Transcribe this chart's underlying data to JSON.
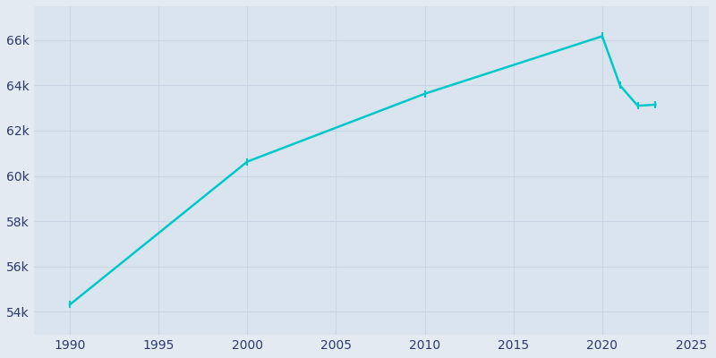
{
  "years": [
    1990,
    2000,
    2010,
    2020,
    2021,
    2022,
    2023
  ],
  "population": [
    54312,
    60632,
    63632,
    66174,
    64000,
    63100,
    63150
  ],
  "line_color": "#00C8C8",
  "marker_color": "#00C8C8",
  "bg_color": "#E3EAF2",
  "plot_bg_color": "#DAE4EF",
  "grid_color": "#C8D6E5",
  "axis_label_color": "#2B3A6B",
  "tick_label_color": "#2B3A6B",
  "xlim": [
    1988,
    2026
  ],
  "ylim": [
    53000,
    67500
  ],
  "yticks": [
    54000,
    56000,
    58000,
    60000,
    62000,
    64000,
    66000
  ],
  "ytick_labels": [
    "54k",
    "56k",
    "58k",
    "60k",
    "62k",
    "64k",
    "66k"
  ],
  "xticks": [
    1990,
    1995,
    2000,
    2005,
    2010,
    2015,
    2020,
    2025
  ],
  "marker_size": 3,
  "line_width": 1.8
}
